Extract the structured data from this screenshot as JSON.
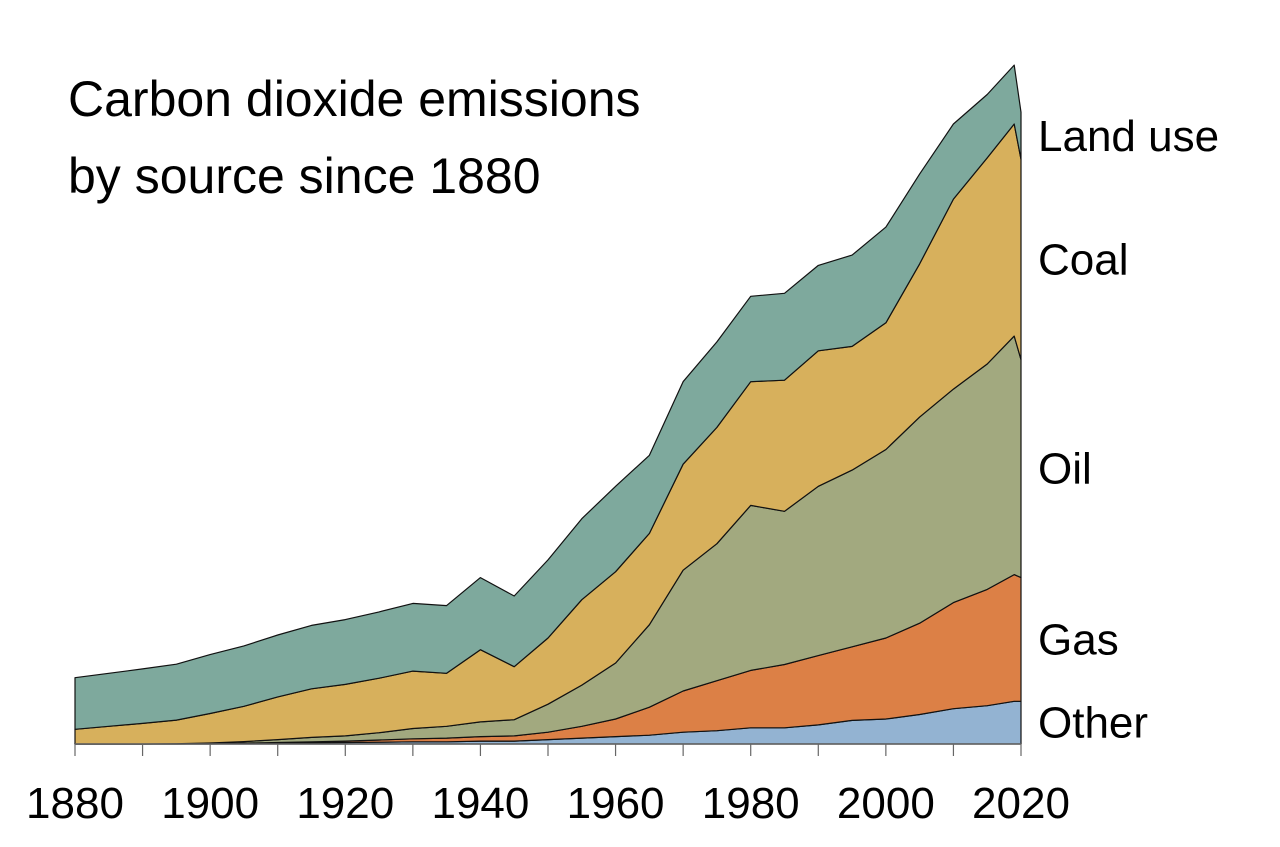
{
  "chart_data": {
    "type": "area",
    "stacked": true,
    "title_lines": [
      "Carbon dioxide emissions",
      "by source since 1880"
    ],
    "xlabel": "",
    "ylabel": "",
    "xlim": [
      1880,
      2020
    ],
    "ylim": [
      0,
      44
    ],
    "x_ticks": [
      1880,
      1890,
      1900,
      1910,
      1920,
      1930,
      1940,
      1950,
      1960,
      1970,
      1980,
      1990,
      2000,
      2010,
      2020
    ],
    "x_tick_labels": [
      1880,
      1900,
      1920,
      1940,
      1960,
      1980,
      2000,
      2020
    ],
    "grid": false,
    "legend": "labels at right end of areas",
    "years": [
      1880,
      1885,
      1890,
      1895,
      1900,
      1905,
      1910,
      1915,
      1920,
      1925,
      1930,
      1935,
      1940,
      1945,
      1950,
      1955,
      1960,
      1965,
      1970,
      1975,
      1980,
      1985,
      1990,
      1995,
      2000,
      2005,
      2010,
      2015,
      2019,
      2020
    ],
    "series": [
      {
        "name": "Other",
        "color": "#93b3d2",
        "values": [
          0,
          0,
          0,
          0,
          0,
          0.03,
          0.05,
          0.08,
          0.1,
          0.12,
          0.15,
          0.15,
          0.2,
          0.2,
          0.3,
          0.4,
          0.5,
          0.6,
          0.8,
          0.9,
          1.1,
          1.1,
          1.3,
          1.6,
          1.7,
          2.0,
          2.4,
          2.6,
          2.9,
          2.9
        ]
      },
      {
        "name": "Gas",
        "color": "#dc8046",
        "values": [
          0,
          0,
          0,
          0,
          0.02,
          0.03,
          0.05,
          0.07,
          0.1,
          0.15,
          0.2,
          0.25,
          0.3,
          0.35,
          0.5,
          0.8,
          1.2,
          1.9,
          2.8,
          3.4,
          3.9,
          4.3,
          4.7,
          5.0,
          5.5,
          6.2,
          7.2,
          7.9,
          8.6,
          8.4
        ]
      },
      {
        "name": "Oil",
        "color": "#a2a97f",
        "values": [
          0,
          0,
          0,
          0.02,
          0.05,
          0.1,
          0.2,
          0.3,
          0.35,
          0.5,
          0.7,
          0.8,
          1.0,
          1.1,
          1.9,
          2.8,
          3.8,
          5.6,
          8.2,
          9.3,
          11.2,
          10.4,
          11.5,
          12.0,
          12.8,
          14.0,
          14.5,
          15.3,
          16.2,
          14.8
        ]
      },
      {
        "name": "Coal",
        "color": "#d7b05c",
        "values": [
          1.0,
          1.2,
          1.4,
          1.6,
          2.0,
          2.4,
          2.9,
          3.3,
          3.5,
          3.7,
          3.9,
          3.6,
          4.9,
          3.6,
          4.5,
          5.8,
          6.2,
          6.2,
          7.2,
          7.9,
          8.4,
          8.9,
          9.2,
          8.4,
          8.6,
          10.4,
          12.9,
          14.0,
          14.4,
          13.6
        ]
      },
      {
        "name": "Land use",
        "color": "#7ea99d",
        "values": [
          3.5,
          3.6,
          3.7,
          3.8,
          4.0,
          4.1,
          4.2,
          4.3,
          4.4,
          4.5,
          4.6,
          4.6,
          4.9,
          4.8,
          5.3,
          5.5,
          5.8,
          5.3,
          5.6,
          5.8,
          5.8,
          5.9,
          5.8,
          6.2,
          6.5,
          6.1,
          5.1,
          4.3,
          4.0,
          3.2
        ]
      }
    ]
  }
}
